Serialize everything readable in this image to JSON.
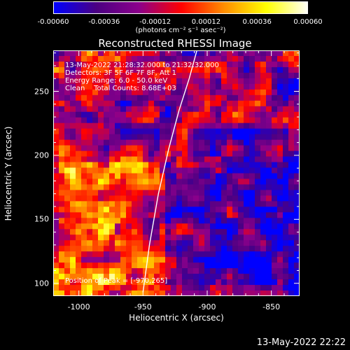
{
  "colorbar": {
    "ticks": [
      "-0.00060",
      "-0.00036",
      "-0.00012",
      "0.00012",
      "0.00036",
      "0.00060"
    ],
    "units": "(photons cm⁻² s⁻¹ asec⁻²)",
    "range": [
      -0.0006,
      0.0006
    ],
    "colormap": [
      "#0000ff",
      "#4b0082",
      "#8b008b",
      "#ff0000",
      "#ff8c00",
      "#ffff00",
      "#ffffff"
    ]
  },
  "chart_data": {
    "type": "heatmap",
    "title": "Reconstructed RHESSI Image",
    "xlabel": "Heliocentric X (arcsec)",
    "ylabel": "Heliocentric Y (arcsec)",
    "xlim": [
      -1020,
      -828
    ],
    "ylim": [
      90,
      282
    ],
    "x_ticks": [
      -1000,
      -950,
      -900,
      -850
    ],
    "y_ticks": [
      100,
      150,
      200,
      250
    ],
    "x_tick_labels": [
      "-1000",
      "-950",
      "-900",
      "-850"
    ],
    "y_tick_labels": [
      "100",
      "150",
      "200",
      "250"
    ],
    "limb_curve": [
      [
        -950,
        93
      ],
      [
        -945,
        130
      ],
      [
        -938,
        170
      ],
      [
        -930,
        205
      ],
      [
        -922,
        235
      ],
      [
        -914,
        260
      ],
      [
        -908,
        282
      ]
    ],
    "peak": [
      -970,
      265
    ]
  },
  "info": {
    "line1": "13-May-2022 21:28:32.000 to 21:32:32.000",
    "line2": "Detectors: 3F 5F 6F 7F 8F, Att 1",
    "line3": "Energy Range: 6.0 - 50.0 keV",
    "line4": "Clean    Total Counts: 8.68E+03",
    "peak_text": "Position of Peak = [-970,265]"
  },
  "timestamp": "13-May-2022 22:22"
}
